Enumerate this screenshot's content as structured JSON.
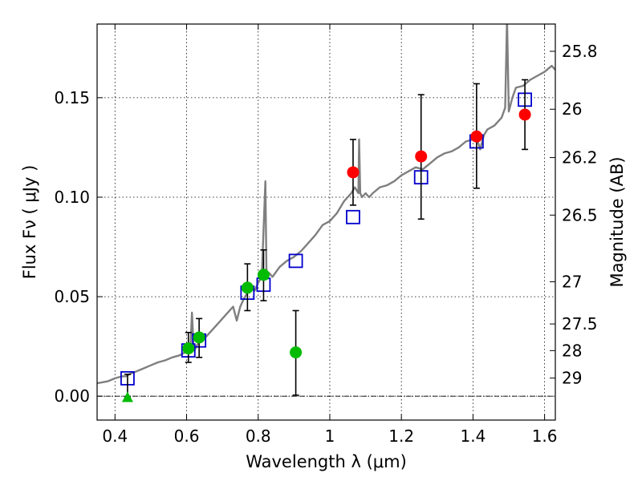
{
  "chart_data": {
    "type": "scatter",
    "xlabel": "Wavelength  λ (μm)",
    "ylabel": "Flux  Fν  ( μJy )",
    "y2label": "Magnitude (AB)",
    "xlim": [
      0.35,
      1.63
    ],
    "ylim": [
      -0.012,
      0.187
    ],
    "x_ticks": [
      0.4,
      0.6,
      0.8,
      1.0,
      1.2,
      1.4,
      1.6
    ],
    "x_tick_labels": [
      "0.4",
      "0.6",
      "0.8",
      "1",
      "1.2",
      "1.4",
      "1.6"
    ],
    "y_ticks": [
      0.0,
      0.05,
      0.1,
      0.15
    ],
    "y_tick_labels": [
      "0.00",
      "0.05",
      "0.10",
      "0.15"
    ],
    "magnitude_ticks": [
      {
        "label": "25.8",
        "flux": 0.1733
      },
      {
        "label": "26",
        "flux": 0.1442
      },
      {
        "label": "26.2",
        "flux": 0.1199
      },
      {
        "label": "26.5",
        "flux": 0.091
      },
      {
        "label": "27",
        "flux": 0.0575
      },
      {
        "label": "27.5",
        "flux": 0.0363
      },
      {
        "label": "28",
        "flux": 0.0229
      },
      {
        "label": "29",
        "flux": 0.0091
      }
    ],
    "grid": true,
    "model_spectrum": {
      "color": "#7f7f7f",
      "x": [
        0.35,
        0.38,
        0.4,
        0.42,
        0.43,
        0.44,
        0.46,
        0.48,
        0.5,
        0.52,
        0.54,
        0.56,
        0.58,
        0.6,
        0.61,
        0.615,
        0.62,
        0.625,
        0.63,
        0.65,
        0.67,
        0.69,
        0.71,
        0.73,
        0.74,
        0.75,
        0.76,
        0.77,
        0.78,
        0.79,
        0.8,
        0.81,
        0.82,
        0.823,
        0.826,
        0.83,
        0.84,
        0.86,
        0.88,
        0.9,
        0.92,
        0.94,
        0.96,
        0.98,
        1.0,
        1.02,
        1.04,
        1.06,
        1.07,
        1.08,
        1.082,
        1.085,
        1.09,
        1.1,
        1.11,
        1.12,
        1.14,
        1.16,
        1.18,
        1.2,
        1.22,
        1.24,
        1.26,
        1.28,
        1.3,
        1.32,
        1.34,
        1.36,
        1.38,
        1.4,
        1.41,
        1.42,
        1.43,
        1.44,
        1.46,
        1.48,
        1.49,
        1.495,
        1.5,
        1.51,
        1.52,
        1.54,
        1.56,
        1.58,
        1.6,
        1.62,
        1.63
      ],
      "y": [
        0.0065,
        0.0075,
        0.009,
        0.01,
        0.01,
        0.011,
        0.0125,
        0.014,
        0.0155,
        0.017,
        0.018,
        0.0195,
        0.0205,
        0.0225,
        0.022,
        0.042,
        0.023,
        0.024,
        0.026,
        0.029,
        0.033,
        0.037,
        0.041,
        0.045,
        0.038,
        0.045,
        0.049,
        0.052,
        0.054,
        0.053,
        0.057,
        0.06,
        0.108,
        0.064,
        0.059,
        0.062,
        0.06,
        0.065,
        0.068,
        0.07,
        0.073,
        0.077,
        0.081,
        0.086,
        0.088,
        0.092,
        0.098,
        0.102,
        0.105,
        0.102,
        0.129,
        0.102,
        0.1,
        0.102,
        0.1,
        0.102,
        0.105,
        0.106,
        0.108,
        0.111,
        0.113,
        0.115,
        0.114,
        0.117,
        0.12,
        0.122,
        0.123,
        0.125,
        0.128,
        0.129,
        0.13,
        0.124,
        0.131,
        0.134,
        0.136,
        0.14,
        0.145,
        0.19,
        0.143,
        0.15,
        0.155,
        0.156,
        0.159,
        0.161,
        0.163,
        0.166,
        0.164
      ]
    },
    "series": [
      {
        "marker": "open-square",
        "color": "#0000cc",
        "points": [
          {
            "x": 0.435,
            "y": 0.009
          },
          {
            "x": 0.605,
            "y": 0.023
          },
          {
            "x": 0.635,
            "y": 0.028
          },
          {
            "x": 0.77,
            "y": 0.052
          },
          {
            "x": 0.815,
            "y": 0.056
          },
          {
            "x": 0.905,
            "y": 0.068
          },
          {
            "x": 1.065,
            "y": 0.09
          },
          {
            "x": 1.255,
            "y": 0.11
          },
          {
            "x": 1.41,
            "y": 0.128
          },
          {
            "x": 1.545,
            "y": 0.149
          }
        ]
      },
      {
        "marker": "filled-circle",
        "color": "#00bb00",
        "points": [
          {
            "x": 0.605,
            "y": 0.024,
            "err_low": 0.017,
            "err_high": 0.032
          },
          {
            "x": 0.635,
            "y": 0.0295,
            "err_low": 0.0195,
            "err_high": 0.039
          },
          {
            "x": 0.77,
            "y": 0.0545,
            "err_low": 0.043,
            "err_high": 0.0665
          },
          {
            "x": 0.815,
            "y": 0.061,
            "err_low": 0.048,
            "err_high": 0.0735
          },
          {
            "x": 0.905,
            "y": 0.022,
            "err_low": 0.0005,
            "err_high": 0.043
          }
        ]
      },
      {
        "marker": "filled-triangle",
        "color": "#00bb00",
        "points": [
          {
            "x": 0.435,
            "y": -0.0005,
            "err_low": -0.0005,
            "err_high": 0.011
          }
        ]
      },
      {
        "marker": "filled-circle",
        "color": "#ff0000",
        "points": [
          {
            "x": 1.065,
            "y": 0.1125,
            "err_low": 0.096,
            "err_high": 0.129
          },
          {
            "x": 1.255,
            "y": 0.1205,
            "err_low": 0.089,
            "err_high": 0.1515
          },
          {
            "x": 1.41,
            "y": 0.1305,
            "err_low": 0.1045,
            "err_high": 0.157
          },
          {
            "x": 1.545,
            "y": 0.1415,
            "err_low": 0.124,
            "err_high": 0.159
          }
        ]
      }
    ]
  }
}
